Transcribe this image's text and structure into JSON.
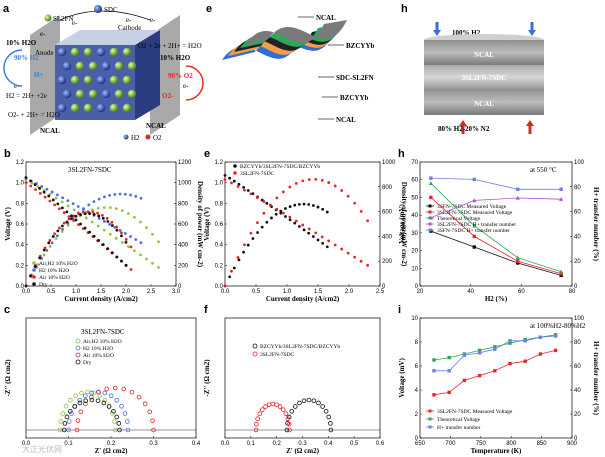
{
  "panel_labels": [
    "a",
    "b",
    "c",
    "d",
    "e",
    "f",
    "g",
    "h",
    "i"
  ],
  "watermark": "大正光伏网",
  "panel_a": {
    "labels": {
      "sdc": "SDC",
      "sl2fn": "SL2FN",
      "cathode": "Cathode",
      "anode": "Anode",
      "h2o_in": "10% H2O",
      "h2_pct": "90% H2",
      "hplus": "H+",
      "o2_eq": "O2 + 2e + 2H+ = H2O",
      "h2o_out": "10% H2O",
      "o2_pct": "90% O2",
      "o2m": "O2-",
      "h2_eq": "H2 = 2H+ +2e",
      "o2_eq2": "O2- + 2H+ = H2O",
      "ncal_l": "NCAL",
      "ncal_r": "NCAL",
      "h2": "H2",
      "o2": "O2",
      "e1": "e-",
      "e2": "e-",
      "e3": "e-",
      "e4": "e-",
      "e5": "e-",
      "e6": "e-"
    }
  },
  "panel_d": {
    "layers": [
      "NCAL",
      "BZCYYb",
      "SDC-SL2FN",
      "BZCYYb",
      "NCAL"
    ]
  },
  "panel_g": {
    "top": "100% H2",
    "bottom": "80% H2-20% N2",
    "layers": [
      "NCAL",
      "3SL2FN-7SDC",
      "NCAL"
    ]
  },
  "chart_data": [
    {
      "id": "b",
      "type": "line",
      "title": "3SL2FN-7SDC",
      "xlabel": "Current density (A/cm2)",
      "ylabel": "Voltage (V)",
      "y2label": "Density of power (mW cm-2)",
      "xlim": [
        0,
        3
      ],
      "ylim": [
        0,
        1.2
      ],
      "y2lim": [
        0,
        1200
      ],
      "xticks": [
        "0.0",
        "0.5",
        "1.0",
        "1.5",
        "2.0",
        "2.5",
        "3.0"
      ],
      "yticks": [
        "0.0",
        "0.2",
        "0.4",
        "0.6",
        "0.8",
        "1.0",
        "1.2"
      ],
      "y2ticks": [
        "0",
        "200",
        "400",
        "600",
        "800",
        "1000",
        "1200"
      ],
      "series": [
        {
          "name": "Air,H2 10% H2O",
          "color": "#8dc63f",
          "ocv": 1.03,
          "vend": 0.18,
          "xmax": 2.65,
          "pmax": 760
        },
        {
          "name": "H2 10% H2O",
          "color": "#4a6fe3",
          "ocv": 1.04,
          "vend": 0.42,
          "xmax": 2.3,
          "pmax": 890
        },
        {
          "name": "Air 10% H2O",
          "color": "#e8262a",
          "ocv": 1.0,
          "vend": 0.16,
          "xmax": 2.1,
          "pmax": 720
        },
        {
          "name": "Dry",
          "color": "#111111",
          "ocv": 1.05,
          "vend": 0.2,
          "xmax": 2.0,
          "pmax": 700
        }
      ]
    },
    {
      "id": "c",
      "type": "scatter",
      "title": "3SL2FN-7SDC",
      "xlabel": "Z' (Ω cm2)",
      "ylabel": "-Z'' (Ω cm2)",
      "xlim": [
        0,
        0.4
      ],
      "xticks": [
        "0.0",
        "0.1",
        "0.2",
        "0.3",
        "0.4"
      ],
      "series": [
        {
          "name": "Air,H2 10% H2O",
          "color": "#8dc63f",
          "r0": 0.08,
          "r1": 0.21,
          "h": 0.038
        },
        {
          "name": "H2 10% H2O",
          "color": "#4a6fe3",
          "r0": 0.1,
          "r1": 0.24,
          "h": 0.038
        },
        {
          "name": "Air 10% H2O",
          "color": "#e8262a",
          "r0": 0.12,
          "r1": 0.3,
          "h": 0.042
        },
        {
          "name": "Dry",
          "color": "#111111",
          "r0": 0.09,
          "r1": 0.22,
          "h": 0.03
        }
      ]
    },
    {
      "id": "e",
      "type": "line",
      "xlabel": "Current density (A/cm2)",
      "ylabel": "Voltage (V)",
      "y2label": "Density of power(mW cm-2)",
      "xlim": [
        0,
        2.5
      ],
      "ylim": [
        0,
        1.2
      ],
      "y2lim": [
        0,
        1000
      ],
      "xticks": [
        "0.0",
        "0.5",
        "1.0",
        "1.5",
        "2.0",
        "2.5"
      ],
      "yticks": [
        "0.0",
        "0.2",
        "0.4",
        "0.6",
        "0.8",
        "1.0",
        "1.2"
      ],
      "y2ticks": [
        "0",
        "200",
        "400",
        "600",
        "800",
        "1000"
      ],
      "series": [
        {
          "name": "BZCYYb/3SL2FN-7SDC/BZCYYb",
          "color": "#111111",
          "ocv": 1.07,
          "vend": 0.38,
          "xmax": 1.65,
          "pmax": 660
        },
        {
          "name": "3SL2FN-7SDC",
          "color": "#e8262a",
          "ocv": 1.03,
          "vend": 0.2,
          "xmax": 2.3,
          "pmax": 860
        }
      ]
    },
    {
      "id": "f",
      "type": "scatter",
      "xlabel": "Z' (Ω cm2)",
      "ylabel": "-Z'' (Ω cm2)",
      "xlim": [
        0,
        0.6
      ],
      "xticks": [
        "0.0",
        "0.1",
        "0.2",
        "0.3",
        "0.4",
        "0.5",
        "0.6"
      ],
      "series": [
        {
          "name": "BZCYYb/3SL2FN-7SDC/BZCYYb",
          "color": "#111111",
          "r0": 0.24,
          "r1": 0.41,
          "h": 0.03
        },
        {
          "name": "3SL2FN-7SDC",
          "color": "#e8262a",
          "r0": 0.12,
          "r1": 0.25,
          "h": 0.026
        }
      ]
    },
    {
      "id": "h",
      "type": "line",
      "annotation": "at 550 °C",
      "xlabel": "H2 (%)",
      "ylabel": "Voltage (mV)",
      "y2label": "H+ transfer number (%)",
      "x": [
        20,
        40,
        60,
        80
      ],
      "xlim": [
        15,
        85
      ],
      "ylim": [
        0,
        70
      ],
      "y2lim": [
        0,
        100
      ],
      "xticks": [
        "20",
        "40",
        "60",
        "80"
      ],
      "yticks": [
        "0",
        "10",
        "20",
        "30",
        "40",
        "50",
        "60",
        "70"
      ],
      "y2ticks": [
        "0",
        "20",
        "40",
        "60",
        "80",
        "100"
      ],
      "series": [
        {
          "name": "3SFN-7SDC Measured Voltage",
          "color": "#111111",
          "values": [
            31,
            22,
            13,
            6
          ],
          "axis": "left"
        },
        {
          "name": "3SL2FN-7SDC Measured Voltage",
          "color": "#e8262a",
          "values": [
            50,
            28,
            14,
            7
          ],
          "axis": "left"
        },
        {
          "name": "Theoretical Voltage",
          "color": "#2da84f",
          "values": [
            58,
            34,
            16,
            8
          ],
          "axis": "left"
        },
        {
          "name": "3SL2FN-7SDC H+ transfer number",
          "color": "#b04fd0",
          "values": [
            55,
            69,
            71,
            70
          ],
          "axis": "right"
        },
        {
          "name": "3SFN-7SDC H+ transfer number",
          "color": "#6f7fe8",
          "values": [
            87,
            86,
            78,
            78
          ],
          "axis": "right"
        }
      ]
    },
    {
      "id": "i",
      "type": "line",
      "annotation": "at 100%H2-80%H2",
      "xlabel": "Temperature (K)",
      "ylabel": "Voltage (mV)",
      "y2label": "H+ transfer number (%)",
      "x": [
        673,
        698,
        723,
        748,
        773,
        798,
        823,
        848,
        873
      ],
      "xlim": [
        650,
        900
      ],
      "ylim": [
        0,
        10
      ],
      "y2lim": [
        0,
        100
      ],
      "xticks": [
        "650",
        "700",
        "750",
        "800",
        "850",
        "900"
      ],
      "yticks": [
        "0",
        "2",
        "4",
        "6",
        "8",
        "10"
      ],
      "y2ticks": [
        "0",
        "20",
        "40",
        "60",
        "80",
        "100"
      ],
      "series": [
        {
          "name": "3SL2FN-7SDC Measured Voltage",
          "color": "#e8262a",
          "values": [
            3.6,
            3.8,
            4.8,
            5.2,
            5.6,
            6.2,
            6.4,
            7.0,
            7.3
          ],
          "axis": "left"
        },
        {
          "name": "Theoretical Voltage",
          "color": "#2da84f",
          "values": [
            6.5,
            6.7,
            7.0,
            7.3,
            7.6,
            7.9,
            8.2,
            8.4,
            8.6
          ],
          "axis": "left"
        },
        {
          "name": "H+ transfer number",
          "color": "#6f7fe8",
          "values": [
            56,
            56,
            69,
            71,
            74,
            81,
            81,
            84,
            85
          ],
          "axis": "right"
        }
      ]
    }
  ]
}
